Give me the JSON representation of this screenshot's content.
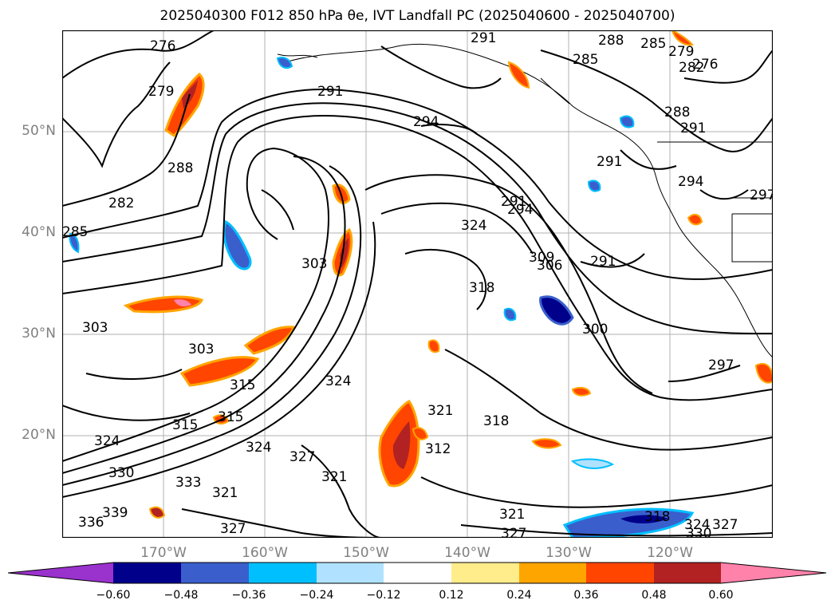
{
  "title": "2025040300 F012 850 hPa θe, IVT Landfall PC (2025040600 - 2025040700)",
  "lat_labels": [
    "50°N",
    "40°N",
    "30°N",
    "20°N"
  ],
  "lon_labels": [
    "170°W",
    "160°W",
    "150°W",
    "140°W",
    "130°W",
    "120°W"
  ],
  "colorbar": {
    "colors": [
      "#9a32cd",
      "#00008b",
      "#3a5fcd",
      "#00bfff",
      "#b0e2ff",
      "#ffffff",
      "#ffec8b",
      "#ffa500",
      "#ff4500",
      "#b22222",
      "#ff82ab"
    ],
    "tick_labels": [
      "−0.60",
      "−0.48",
      "−0.36",
      "−0.24",
      "−0.12",
      "0.12",
      "0.24",
      "0.36",
      "0.48",
      "0.60"
    ]
  },
  "contour_labels": [
    "276",
    "276",
    "279",
    "279",
    "282",
    "282",
    "285",
    "285",
    "285",
    "288",
    "288",
    "288",
    "291",
    "291",
    "291",
    "291",
    "291",
    "291",
    "294",
    "294",
    "294",
    "297",
    "297",
    "300",
    "303",
    "303",
    "303",
    "306",
    "309",
    "312",
    "315",
    "315",
    "315",
    "318",
    "318",
    "318",
    "321",
    "321",
    "321",
    "321",
    "324",
    "324",
    "324",
    "324",
    "324",
    "327",
    "327",
    "327",
    "327",
    "330",
    "330",
    "333",
    "336",
    "339"
  ]
}
